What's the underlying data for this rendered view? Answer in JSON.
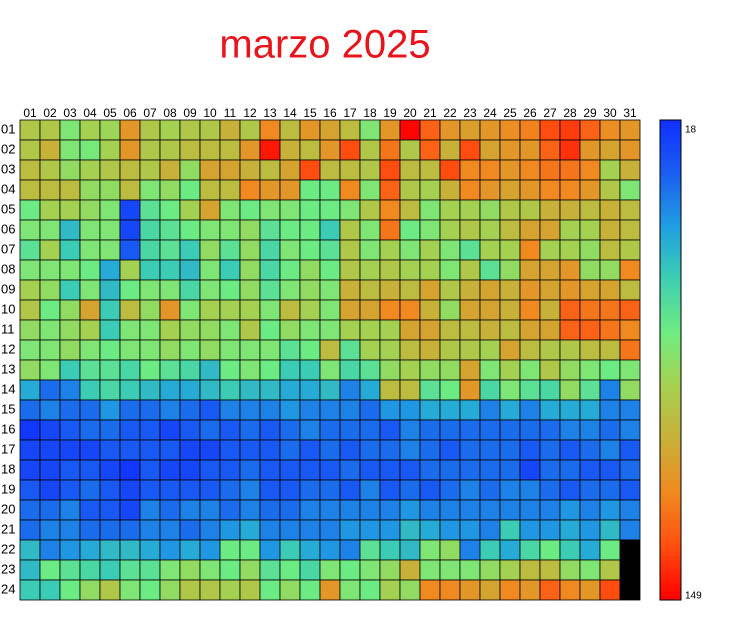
{
  "chart_data": {
    "type": "heatmap",
    "title": "marzo 2025",
    "title_color": "#e8141c",
    "x": [
      "01",
      "02",
      "03",
      "04",
      "05",
      "06",
      "07",
      "08",
      "09",
      "10",
      "11",
      "12",
      "13",
      "14",
      "15",
      "16",
      "17",
      "18",
      "19",
      "20",
      "21",
      "22",
      "23",
      "24",
      "25",
      "26",
      "27",
      "28",
      "29",
      "30",
      "31"
    ],
    "y": [
      "01",
      "02",
      "03",
      "04",
      "05",
      "06",
      "07",
      "08",
      "09",
      "10",
      "11",
      "12",
      "13",
      "14",
      "15",
      "16",
      "17",
      "18",
      "19",
      "20",
      "21",
      "22",
      "23",
      "24"
    ],
    "values": [
      [
        95,
        95,
        80,
        90,
        88,
        115,
        95,
        90,
        95,
        95,
        105,
        95,
        120,
        100,
        115,
        110,
        100,
        80,
        115,
        148,
        130,
        115,
        112,
        115,
        118,
        122,
        135,
        138,
        130,
        118,
        115
      ],
      [
        95,
        105,
        80,
        78,
        90,
        115,
        95,
        95,
        100,
        100,
        100,
        115,
        145,
        105,
        100,
        115,
        135,
        95,
        125,
        95,
        130,
        105,
        135,
        110,
        115,
        115,
        130,
        140,
        115,
        110,
        115
      ],
      [
        100,
        95,
        85,
        90,
        95,
        100,
        95,
        105,
        85,
        110,
        110,
        105,
        100,
        110,
        135,
        100,
        100,
        95,
        135,
        100,
        100,
        135,
        120,
        120,
        115,
        120,
        125,
        125,
        120,
        90,
        105
      ],
      [
        100,
        100,
        100,
        85,
        85,
        100,
        80,
        85,
        75,
        100,
        100,
        120,
        115,
        115,
        75,
        75,
        120,
        80,
        130,
        95,
        90,
        105,
        120,
        115,
        110,
        115,
        120,
        120,
        115,
        95,
        80
      ],
      [
        75,
        90,
        90,
        85,
        80,
        25,
        70,
        75,
        90,
        110,
        80,
        75,
        80,
        80,
        75,
        75,
        80,
        95,
        120,
        100,
        80,
        90,
        90,
        85,
        95,
        95,
        105,
        105,
        100,
        105,
        100
      ],
      [
        80,
        80,
        55,
        80,
        80,
        25,
        65,
        70,
        75,
        80,
        80,
        85,
        70,
        75,
        75,
        60,
        95,
        80,
        125,
        75,
        80,
        90,
        95,
        90,
        100,
        110,
        110,
        90,
        90,
        105,
        100
      ],
      [
        70,
        90,
        60,
        80,
        80,
        30,
        65,
        70,
        60,
        85,
        70,
        85,
        65,
        80,
        75,
        70,
        95,
        80,
        90,
        80,
        90,
        80,
        70,
        90,
        90,
        120,
        90,
        90,
        85,
        100,
        95
      ],
      [
        80,
        80,
        80,
        75,
        50,
        90,
        60,
        60,
        55,
        80,
        60,
        85,
        65,
        75,
        85,
        75,
        95,
        90,
        95,
        90,
        90,
        80,
        95,
        70,
        85,
        110,
        110,
        115,
        85,
        85,
        120
      ],
      [
        90,
        85,
        60,
        80,
        55,
        75,
        80,
        80,
        65,
        80,
        75,
        85,
        70,
        80,
        85,
        80,
        105,
        100,
        105,
        100,
        110,
        95,
        105,
        110,
        105,
        115,
        110,
        115,
        110,
        110,
        100
      ],
      [
        95,
        75,
        85,
        110,
        60,
        100,
        85,
        115,
        80,
        90,
        90,
        90,
        80,
        100,
        90,
        80,
        110,
        110,
        120,
        120,
        105,
        85,
        110,
        110,
        105,
        120,
        105,
        130,
        125,
        125,
        130
      ],
      [
        85,
        80,
        85,
        90,
        60,
        80,
        80,
        90,
        85,
        85,
        80,
        95,
        75,
        85,
        80,
        80,
        90,
        90,
        90,
        110,
        110,
        100,
        100,
        105,
        100,
        110,
        110,
        130,
        130,
        125,
        120
      ],
      [
        80,
        80,
        85,
        80,
        75,
        80,
        80,
        85,
        80,
        85,
        80,
        80,
        80,
        70,
        75,
        100,
        70,
        90,
        90,
        100,
        105,
        95,
        95,
        90,
        110,
        100,
        95,
        95,
        100,
        100,
        125
      ],
      [
        85,
        80,
        60,
        70,
        70,
        65,
        75,
        70,
        65,
        55,
        75,
        80,
        75,
        60,
        60,
        80,
        65,
        70,
        85,
        90,
        85,
        85,
        110,
        80,
        90,
        80,
        95,
        85,
        80,
        75,
        80
      ],
      [
        50,
        35,
        40,
        60,
        65,
        60,
        55,
        50,
        50,
        55,
        60,
        55,
        55,
        50,
        50,
        55,
        40,
        50,
        100,
        100,
        70,
        75,
        115,
        65,
        80,
        70,
        65,
        85,
        70,
        40,
        85
      ],
      [
        35,
        40,
        35,
        35,
        45,
        35,
        35,
        40,
        35,
        30,
        40,
        40,
        40,
        45,
        40,
        40,
        40,
        35,
        45,
        45,
        50,
        50,
        50,
        40,
        50,
        40,
        50,
        50,
        50,
        40,
        40
      ],
      [
        20,
        25,
        30,
        35,
        35,
        30,
        30,
        25,
        30,
        35,
        30,
        35,
        30,
        35,
        40,
        35,
        35,
        35,
        30,
        40,
        35,
        35,
        35,
        35,
        35,
        35,
        35,
        40,
        40,
        35,
        40
      ],
      [
        25,
        25,
        25,
        25,
        30,
        30,
        30,
        30,
        25,
        25,
        30,
        30,
        30,
        35,
        30,
        35,
        30,
        35,
        35,
        40,
        35,
        30,
        35,
        35,
        35,
        30,
        35,
        30,
        35,
        40,
        30
      ],
      [
        25,
        25,
        30,
        30,
        25,
        20,
        30,
        25,
        25,
        30,
        30,
        35,
        30,
        30,
        30,
        30,
        35,
        30,
        30,
        30,
        35,
        35,
        35,
        35,
        35,
        25,
        35,
        35,
        30,
        30,
        35
      ],
      [
        30,
        25,
        30,
        35,
        30,
        25,
        30,
        30,
        30,
        30,
        35,
        40,
        30,
        30,
        35,
        35,
        30,
        40,
        30,
        35,
        30,
        35,
        40,
        35,
        40,
        40,
        35,
        30,
        35,
        35,
        30
      ],
      [
        35,
        35,
        40,
        30,
        30,
        25,
        40,
        35,
        40,
        40,
        35,
        40,
        35,
        35,
        40,
        40,
        40,
        40,
        40,
        45,
        40,
        40,
        40,
        40,
        40,
        40,
        40,
        45,
        40,
        45,
        40
      ],
      [
        35,
        40,
        40,
        35,
        35,
        35,
        40,
        40,
        35,
        40,
        45,
        50,
        40,
        40,
        40,
        40,
        45,
        45,
        45,
        55,
        50,
        45,
        45,
        40,
        60,
        45,
        45,
        50,
        45,
        55,
        40
      ],
      [
        55,
        40,
        45,
        50,
        55,
        55,
        50,
        45,
        50,
        45,
        75,
        75,
        45,
        60,
        50,
        45,
        40,
        70,
        60,
        55,
        80,
        85,
        40,
        60,
        50,
        65,
        75,
        60,
        50,
        75,
        null
      ],
      [
        55,
        75,
        70,
        65,
        60,
        70,
        70,
        80,
        85,
        80,
        75,
        85,
        70,
        75,
        65,
        80,
        75,
        80,
        85,
        105,
        80,
        80,
        80,
        85,
        90,
        100,
        100,
        85,
        80,
        95,
        null
      ],
      [
        60,
        60,
        75,
        85,
        95,
        80,
        75,
        85,
        95,
        95,
        90,
        95,
        75,
        85,
        75,
        115,
        80,
        75,
        90,
        85,
        120,
        120,
        115,
        110,
        120,
        115,
        130,
        120,
        115,
        135,
        null
      ]
    ],
    "zlim": [
      18,
      149
    ],
    "zticks": [
      18,
      149
    ],
    "colorscale": [
      "#1030ff",
      "#1a60f0",
      "#20a0e0",
      "#40d0b0",
      "#70ec80",
      "#a8d050",
      "#c8b038",
      "#f08a20",
      "#ff5010",
      "#ff0000"
    ],
    "missing_color": "#000000"
  }
}
